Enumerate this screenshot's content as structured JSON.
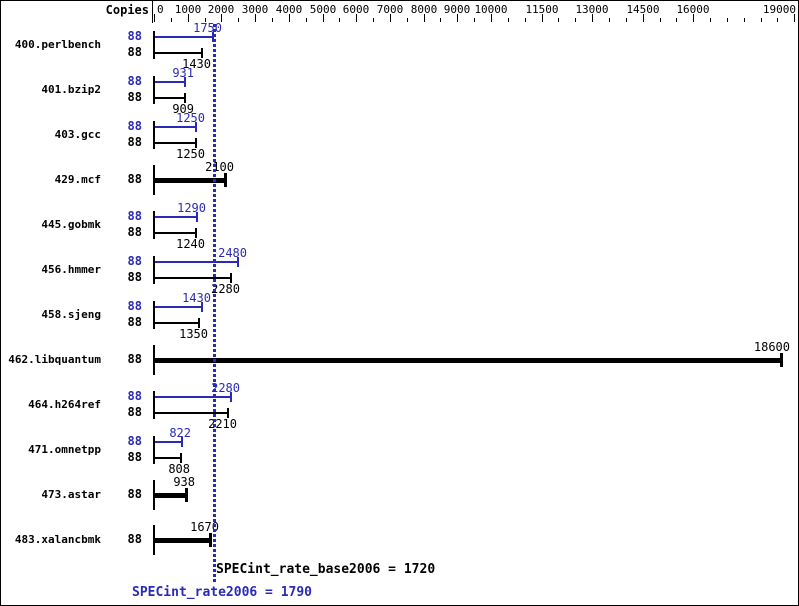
{
  "colors": {
    "peak_blue": "#2a2ab8",
    "base_black": "#000000",
    "background": "#ffffff"
  },
  "header": {
    "copies_label": "Copies"
  },
  "chart_data": {
    "type": "bar",
    "orientation": "horizontal",
    "title": "",
    "xlabel": "",
    "copies_column_header": "Copies",
    "xlim": [
      0,
      19300
    ],
    "grid": false,
    "legend_position": "none",
    "axis_major_ticks": [
      {
        "value": 0,
        "label": "0"
      },
      {
        "value": 1000,
        "label": "1000"
      },
      {
        "value": 2000,
        "label": "2000"
      },
      {
        "value": 3000,
        "label": "3000"
      },
      {
        "value": 4000,
        "label": "4000"
      },
      {
        "value": 5000,
        "label": "5000"
      },
      {
        "value": 6000,
        "label": "6000"
      },
      {
        "value": 7000,
        "label": "7000"
      },
      {
        "value": 8000,
        "label": "8000"
      },
      {
        "value": 9000,
        "label": "9000"
      },
      {
        "value": 10000,
        "label": "10000"
      },
      {
        "value": 11500,
        "label": "11500"
      },
      {
        "value": 13000,
        "label": "13000"
      },
      {
        "value": 14500,
        "label": "14500"
      },
      {
        "value": 16000,
        "label": "16000"
      },
      {
        "value": 19000,
        "label": "19000"
      }
    ],
    "axis_minor_tick_step": 500,
    "series": [
      {
        "name": "peak",
        "color": "#2a2ab8"
      },
      {
        "name": "base",
        "color": "#000000"
      }
    ],
    "rows": [
      {
        "name": "400.perlbench",
        "copies": 88,
        "peak": 1750,
        "base": 1430,
        "display": "pair"
      },
      {
        "name": "401.bzip2",
        "copies": 88,
        "peak": 931,
        "base": 909,
        "display": "pair"
      },
      {
        "name": "403.gcc",
        "copies": 88,
        "peak": 1250,
        "base": 1250,
        "display": "pair"
      },
      {
        "name": "429.mcf",
        "copies": 88,
        "base": 2100,
        "display": "single"
      },
      {
        "name": "445.gobmk",
        "copies": 88,
        "peak": 1290,
        "base": 1240,
        "display": "pair"
      },
      {
        "name": "456.hmmer",
        "copies": 88,
        "peak": 2480,
        "base": 2280,
        "display": "pair"
      },
      {
        "name": "458.sjeng",
        "copies": 88,
        "peak": 1430,
        "base": 1350,
        "display": "pair"
      },
      {
        "name": "462.libquantum",
        "copies": 88,
        "base": 18600,
        "display": "single"
      },
      {
        "name": "464.h264ref",
        "copies": 88,
        "peak": 2280,
        "base": 2210,
        "display": "pair"
      },
      {
        "name": "471.omnetpp",
        "copies": 88,
        "peak": 822,
        "base": 808,
        "display": "pair"
      },
      {
        "name": "473.astar",
        "copies": 88,
        "base": 938,
        "display": "single"
      },
      {
        "name": "483.xalancbmk",
        "copies": 88,
        "base": 1670,
        "display": "single"
      }
    ],
    "medians": {
      "base": {
        "label": "SPECint_rate_base2006 = 1720",
        "value": 1720
      },
      "peak": {
        "label": "SPECint_rate2006 = 1790",
        "value": 1790
      }
    }
  }
}
